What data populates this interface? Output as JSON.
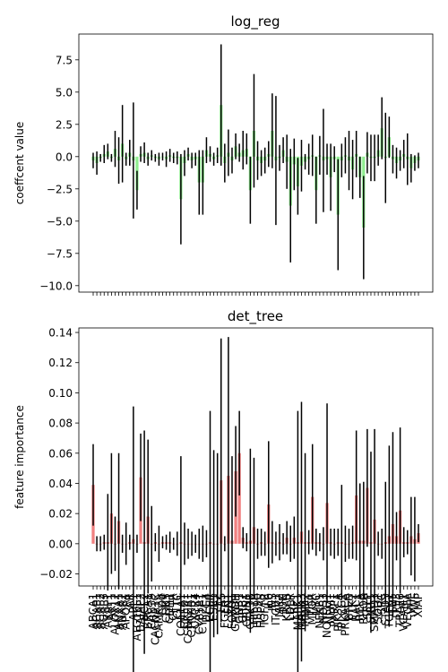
{
  "chart_data": [
    {
      "type": "bar",
      "title": "log_reg",
      "xlabel": "",
      "ylabel": "coeffcent value",
      "ylim": [
        -10.5,
        9.5
      ],
      "yticks": [
        -10.0,
        -7.5,
        -5.0,
        -2.5,
        0.0,
        2.5,
        5.0,
        7.5
      ],
      "ytick_labels": [
        "−10.0",
        "−7.5",
        "−5.0",
        "−2.5",
        "0.0",
        "2.5",
        "5.0",
        "7.5"
      ],
      "grid": false,
      "mark_colors": {
        "bar": "#90ee90",
        "errorbar": "#000000"
      },
      "n_categories": 90,
      "x_tick_labels_shown": false,
      "series": [
        {
          "values": [
            -0.3,
            -0.5,
            -0.1,
            0.2,
            0.4,
            -0.1,
            0.6,
            -0.3,
            1.0,
            -0.2,
            0.3,
            -0.3,
            -2.6,
            0.2,
            0.3,
            -0.2,
            0.1,
            -0.1,
            -0.2,
            0.0,
            -0.2,
            0.1,
            -0.1,
            -0.1,
            -3.3,
            -0.5,
            0.2,
            -0.3,
            -0.2,
            -2.0,
            -2.0,
            0.5,
            0.2,
            -0.2,
            0.1,
            4.0,
            -0.5,
            0.3,
            -0.3,
            0.8,
            0.3,
            0.5,
            0.6,
            -2.6,
            2.0,
            -0.3,
            -0.5,
            -0.3,
            0.2,
            2.0,
            -0.3,
            -0.1,
            0.5,
            -0.4,
            -3.8,
            -0.6,
            -2.3,
            -0.7,
            -0.4,
            -0.2,
            0.1,
            -2.6,
            0.1,
            -0.3,
            -0.2,
            -1.6,
            -0.2,
            -4.5,
            -0.3,
            0.1,
            -0.3,
            -1.0,
            0.2,
            -1.6,
            -5.5,
            0.3,
            -0.1,
            -0.1,
            0.5,
            2.2,
            -0.1,
            1.5,
            -0.2,
            -0.5,
            -0.3,
            0.2,
            -0.2,
            -0.9,
            -0.5,
            -0.3
          ],
          "errors": [
            0.6,
            0.9,
            0.3,
            0.7,
            0.6,
            0.3,
            1.4,
            1.8,
            3.0,
            0.5,
            1.0,
            4.5,
            1.5,
            0.6,
            0.8,
            0.5,
            0.4,
            0.3,
            0.5,
            0.3,
            0.6,
            0.5,
            0.4,
            0.5,
            3.5,
            1.0,
            0.5,
            0.6,
            0.5,
            2.5,
            2.5,
            1.0,
            0.6,
            0.5,
            0.6,
            4.7,
            1.5,
            1.8,
            1.0,
            1.0,
            0.7,
            1.5,
            1.2,
            2.6,
            4.4,
            1.5,
            1.0,
            1.0,
            1.0,
            2.9,
            5.0,
            1.0,
            1.0,
            2.1,
            4.4,
            2.0,
            2.2,
            2.0,
            0.6,
            1.2,
            1.6,
            2.6,
            1.5,
            4.0,
            1.2,
            2.6,
            1.0,
            4.3,
            1.3,
            1.4,
            2.3,
            2.3,
            1.8,
            1.6,
            4.0,
            1.6,
            1.8,
            1.8,
            1.2,
            2.4,
            3.5,
            1.6,
            1.1,
            1.2,
            0.8,
            1.1,
            2.0,
            1.1,
            0.6,
            0.6
          ]
        }
      ]
    },
    {
      "type": "bar",
      "title": "det_tree",
      "xlabel": "",
      "ylabel": "feature importance",
      "ylim": [
        -0.028,
        0.143
      ],
      "yticks": [
        -0.02,
        0.0,
        0.02,
        0.04,
        0.06,
        0.08,
        0.1,
        0.12,
        0.14
      ],
      "ytick_labels": [
        "−0.02",
        "0.00",
        "0.02",
        "0.04",
        "0.06",
        "0.08",
        "0.10",
        "0.12",
        "0.14"
      ],
      "grid": false,
      "mark_colors": {
        "bar": "#f08080",
        "errorbar": "#000000"
      },
      "n_categories": 90,
      "x_tick_labels": [
        "ABCA1",
        "AGAP1",
        "AGAP2",
        "AGAP3",
        "AKAP1",
        "AKT1",
        "ALOX12",
        "ANXA1",
        "ANXA2",
        "APOA1",
        "AR",
        "ARL1",
        "ATG16L1",
        "BAIAP2",
        "BCL2",
        "BRCA1",
        "CAB39",
        "CACNA1C",
        "CAMK2A",
        "CD4",
        "CDK5",
        "CDH1",
        "CFTR",
        "CLTC",
        "COL1A1",
        "CREB1",
        "CSNK2A1",
        "CTNNB1",
        "CXCR4",
        "CYP1A1",
        "CYP2E1",
        "DLG4",
        "EGFR",
        "ESR1",
        "F2",
        "FAS",
        "FGFR1",
        "FN1",
        "FOXO1",
        "GAPDH",
        "GNB1",
        "GRB2",
        "GRIN1",
        "GSK3B",
        "HIF1A",
        "HSP90",
        "HSPA5",
        "IGF1R",
        "IL6",
        "INS",
        "ITGB1",
        "JAK2",
        "JUN",
        "KRAS",
        "LDLR",
        "LRP1",
        "MAPK1",
        "MAPK3",
        "MDM2",
        "MET",
        "MTOR",
        "MYC",
        "NFKB1",
        "NOS3",
        "NOTCH1",
        "NPM1",
        "PARP1",
        "PIK3CA",
        "PLCG1",
        "PRKACA",
        "PTEN",
        "PTK2",
        "RAC1",
        "RELA",
        "RHOA",
        "SELP",
        "SIRT1",
        "SMAD3",
        "SOD1",
        "SRC",
        "STAT3",
        "TGFB1",
        "TNF",
        "TP53",
        "TRAF6",
        "VCAM1",
        "VEGFA",
        "VHL",
        "VWF",
        "XIAP"
      ],
      "series": [
        {
          "values": [
            0.039,
            0.0,
            0.0,
            0.001,
            0.001,
            0.02,
            0.0,
            0.015,
            0.0,
            0.0,
            0.001,
            0.003,
            0.0,
            0.044,
            0.001,
            0.018,
            0.0,
            0.001,
            0.0,
            0.001,
            0.001,
            0.001,
            0.0,
            0.0,
            0.001,
            0.0,
            0.0,
            0.0,
            0.0,
            0.0,
            0.0,
            0.0,
            0.001,
            0.0,
            0.0,
            0.042,
            0.0,
            0.045,
            0.002,
            0.048,
            0.06,
            0.004,
            0.001,
            0.002,
            0.011,
            0.0,
            0.001,
            0.0,
            0.026,
            0.001,
            0.0,
            0.001,
            0.0,
            0.004,
            0.0,
            0.004,
            0.001,
            0.008,
            0.001,
            0.001,
            0.031,
            0.001,
            0.001,
            0.0,
            0.027,
            0.001,
            0.0,
            0.001,
            0.001,
            0.0,
            0.0,
            0.001,
            0.032,
            0.002,
            0.002,
            0.037,
            0.001,
            0.016,
            0.0,
            0.0,
            0.001,
            0.005,
            0.013,
            0.005,
            0.022,
            0.001,
            0.001,
            0.005,
            0.003,
            0.007
          ],
          "errors": [
            0.027,
            0.005,
            0.005,
            0.005,
            0.032,
            0.04,
            0.018,
            0.045,
            0.006,
            0.014,
            0.005,
            0.088,
            0.006,
            0.029,
            0.074,
            0.051,
            0.025,
            0.006,
            0.012,
            0.004,
            0.005,
            0.007,
            0.004,
            0.008,
            0.057,
            0.014,
            0.01,
            0.008,
            0.006,
            0.01,
            0.012,
            0.009,
            0.087,
            0.062,
            0.06,
            0.094,
            0.005,
            0.092,
            0.056,
            0.03,
            0.028,
            0.007,
            0.006,
            0.061,
            0.046,
            0.01,
            0.009,
            0.008,
            0.042,
            0.014,
            0.008,
            0.012,
            0.007,
            0.011,
            0.012,
            0.014,
            0.087,
            0.086,
            0.059,
            0.008,
            0.035,
            0.009,
            0.006,
            0.011,
            0.066,
            0.009,
            0.01,
            0.009,
            0.038,
            0.012,
            0.01,
            0.011,
            0.043,
            0.038,
            0.039,
            0.039,
            0.06,
            0.06,
            0.008,
            0.01,
            0.04,
            0.06,
            0.061,
            0.016,
            0.055,
            0.01,
            0.008,
            0.026,
            0.028,
            0.006
          ]
        }
      ]
    }
  ]
}
